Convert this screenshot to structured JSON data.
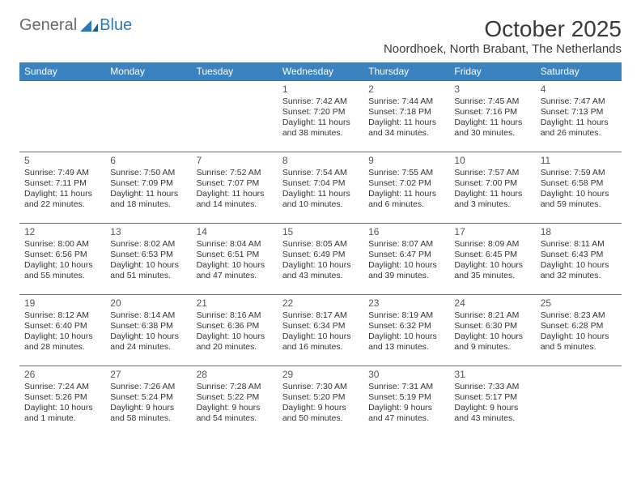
{
  "brand": {
    "part1": "General",
    "part2": "Blue"
  },
  "title": "October 2025",
  "subtitle": "Noordhoek, North Brabant, The Netherlands",
  "colors": {
    "header_bg": "#3b83c0",
    "header_text": "#ffffff",
    "border": "#2f78b8",
    "brand_gray": "#6a6a6a",
    "brand_blue": "#2f78b8",
    "text": "#333333"
  },
  "font_sizes": {
    "title": 28,
    "subtitle": 15,
    "weekday": 12,
    "daynum": 12,
    "info": 10.5
  },
  "weekdays": [
    "Sunday",
    "Monday",
    "Tuesday",
    "Wednesday",
    "Thursday",
    "Friday",
    "Saturday"
  ],
  "weeks": [
    [
      null,
      null,
      null,
      {
        "n": "1",
        "sr": "Sunrise: 7:42 AM",
        "ss": "Sunset: 7:20 PM",
        "dl": "Daylight: 11 hours and 38 minutes."
      },
      {
        "n": "2",
        "sr": "Sunrise: 7:44 AM",
        "ss": "Sunset: 7:18 PM",
        "dl": "Daylight: 11 hours and 34 minutes."
      },
      {
        "n": "3",
        "sr": "Sunrise: 7:45 AM",
        "ss": "Sunset: 7:16 PM",
        "dl": "Daylight: 11 hours and 30 minutes."
      },
      {
        "n": "4",
        "sr": "Sunrise: 7:47 AM",
        "ss": "Sunset: 7:13 PM",
        "dl": "Daylight: 11 hours and 26 minutes."
      }
    ],
    [
      {
        "n": "5",
        "sr": "Sunrise: 7:49 AM",
        "ss": "Sunset: 7:11 PM",
        "dl": "Daylight: 11 hours and 22 minutes."
      },
      {
        "n": "6",
        "sr": "Sunrise: 7:50 AM",
        "ss": "Sunset: 7:09 PM",
        "dl": "Daylight: 11 hours and 18 minutes."
      },
      {
        "n": "7",
        "sr": "Sunrise: 7:52 AM",
        "ss": "Sunset: 7:07 PM",
        "dl": "Daylight: 11 hours and 14 minutes."
      },
      {
        "n": "8",
        "sr": "Sunrise: 7:54 AM",
        "ss": "Sunset: 7:04 PM",
        "dl": "Daylight: 11 hours and 10 minutes."
      },
      {
        "n": "9",
        "sr": "Sunrise: 7:55 AM",
        "ss": "Sunset: 7:02 PM",
        "dl": "Daylight: 11 hours and 6 minutes."
      },
      {
        "n": "10",
        "sr": "Sunrise: 7:57 AM",
        "ss": "Sunset: 7:00 PM",
        "dl": "Daylight: 11 hours and 3 minutes."
      },
      {
        "n": "11",
        "sr": "Sunrise: 7:59 AM",
        "ss": "Sunset: 6:58 PM",
        "dl": "Daylight: 10 hours and 59 minutes."
      }
    ],
    [
      {
        "n": "12",
        "sr": "Sunrise: 8:00 AM",
        "ss": "Sunset: 6:56 PM",
        "dl": "Daylight: 10 hours and 55 minutes."
      },
      {
        "n": "13",
        "sr": "Sunrise: 8:02 AM",
        "ss": "Sunset: 6:53 PM",
        "dl": "Daylight: 10 hours and 51 minutes."
      },
      {
        "n": "14",
        "sr": "Sunrise: 8:04 AM",
        "ss": "Sunset: 6:51 PM",
        "dl": "Daylight: 10 hours and 47 minutes."
      },
      {
        "n": "15",
        "sr": "Sunrise: 8:05 AM",
        "ss": "Sunset: 6:49 PM",
        "dl": "Daylight: 10 hours and 43 minutes."
      },
      {
        "n": "16",
        "sr": "Sunrise: 8:07 AM",
        "ss": "Sunset: 6:47 PM",
        "dl": "Daylight: 10 hours and 39 minutes."
      },
      {
        "n": "17",
        "sr": "Sunrise: 8:09 AM",
        "ss": "Sunset: 6:45 PM",
        "dl": "Daylight: 10 hours and 35 minutes."
      },
      {
        "n": "18",
        "sr": "Sunrise: 8:11 AM",
        "ss": "Sunset: 6:43 PM",
        "dl": "Daylight: 10 hours and 32 minutes."
      }
    ],
    [
      {
        "n": "19",
        "sr": "Sunrise: 8:12 AM",
        "ss": "Sunset: 6:40 PM",
        "dl": "Daylight: 10 hours and 28 minutes."
      },
      {
        "n": "20",
        "sr": "Sunrise: 8:14 AM",
        "ss": "Sunset: 6:38 PM",
        "dl": "Daylight: 10 hours and 24 minutes."
      },
      {
        "n": "21",
        "sr": "Sunrise: 8:16 AM",
        "ss": "Sunset: 6:36 PM",
        "dl": "Daylight: 10 hours and 20 minutes."
      },
      {
        "n": "22",
        "sr": "Sunrise: 8:17 AM",
        "ss": "Sunset: 6:34 PM",
        "dl": "Daylight: 10 hours and 16 minutes."
      },
      {
        "n": "23",
        "sr": "Sunrise: 8:19 AM",
        "ss": "Sunset: 6:32 PM",
        "dl": "Daylight: 10 hours and 13 minutes."
      },
      {
        "n": "24",
        "sr": "Sunrise: 8:21 AM",
        "ss": "Sunset: 6:30 PM",
        "dl": "Daylight: 10 hours and 9 minutes."
      },
      {
        "n": "25",
        "sr": "Sunrise: 8:23 AM",
        "ss": "Sunset: 6:28 PM",
        "dl": "Daylight: 10 hours and 5 minutes."
      }
    ],
    [
      {
        "n": "26",
        "sr": "Sunrise: 7:24 AM",
        "ss": "Sunset: 5:26 PM",
        "dl": "Daylight: 10 hours and 1 minute."
      },
      {
        "n": "27",
        "sr": "Sunrise: 7:26 AM",
        "ss": "Sunset: 5:24 PM",
        "dl": "Daylight: 9 hours and 58 minutes."
      },
      {
        "n": "28",
        "sr": "Sunrise: 7:28 AM",
        "ss": "Sunset: 5:22 PM",
        "dl": "Daylight: 9 hours and 54 minutes."
      },
      {
        "n": "29",
        "sr": "Sunrise: 7:30 AM",
        "ss": "Sunset: 5:20 PM",
        "dl": "Daylight: 9 hours and 50 minutes."
      },
      {
        "n": "30",
        "sr": "Sunrise: 7:31 AM",
        "ss": "Sunset: 5:19 PM",
        "dl": "Daylight: 9 hours and 47 minutes."
      },
      {
        "n": "31",
        "sr": "Sunrise: 7:33 AM",
        "ss": "Sunset: 5:17 PM",
        "dl": "Daylight: 9 hours and 43 minutes."
      },
      null
    ]
  ]
}
